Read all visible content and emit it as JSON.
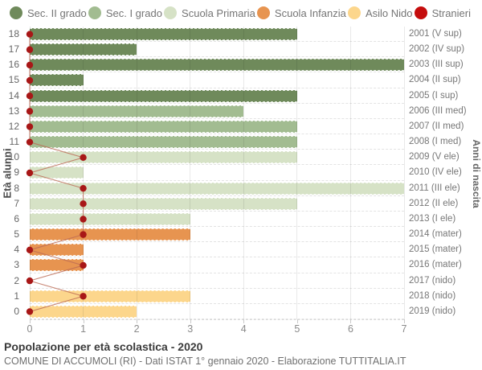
{
  "legend": {
    "items": [
      {
        "key": "sec2",
        "label": "Sec. II grado",
        "color": "#6f8a5b"
      },
      {
        "key": "sec1",
        "label": "Sec. I grado",
        "color": "#a2bc91"
      },
      {
        "key": "primaria",
        "label": "Scuola Primaria",
        "color": "#d6e2c6"
      },
      {
        "key": "infanzia",
        "label": "Scuola Infanzia",
        "color": "#e79450"
      },
      {
        "key": "nido",
        "label": "Asilo Nido",
        "color": "#fcd68c"
      },
      {
        "key": "stranieri",
        "label": "Stranieri",
        "color": "#c50d0d"
      }
    ]
  },
  "chart_data": {
    "type": "bar",
    "orientation": "horizontal",
    "title": "Popolazione per età scolastica - 2020",
    "subtitle": "COMUNE DI ACCUMOLI (RI) - Dati ISTAT 1° gennaio 2020 - Elaborazione TUTTITALIA.IT",
    "left_axis_label": "Età alunni",
    "right_axis_label": "Anni di nascita",
    "xlim": [
      0,
      7
    ],
    "x_ticks": [
      0,
      1,
      2,
      3,
      4,
      5,
      6,
      7
    ],
    "grid": true,
    "series_colors": {
      "sec2": "#6f8a5b",
      "sec1": "#a2bc91",
      "primaria": "#d6e2c6",
      "infanzia": "#e79450",
      "nido": "#fcd68c"
    },
    "stranieri_dot_color": "#a81717",
    "stranieri_line_color": "#bc6a55",
    "rows": [
      {
        "age": 18,
        "birth_label": "2001 (V sup)",
        "group": "sec2",
        "value": 5,
        "stranieri": 0
      },
      {
        "age": 17,
        "birth_label": "2002 (IV sup)",
        "group": "sec2",
        "value": 2,
        "stranieri": 0
      },
      {
        "age": 16,
        "birth_label": "2003 (III sup)",
        "group": "sec2",
        "value": 7,
        "stranieri": 0
      },
      {
        "age": 15,
        "birth_label": "2004 (II sup)",
        "group": "sec2",
        "value": 1,
        "stranieri": 0
      },
      {
        "age": 14,
        "birth_label": "2005 (I sup)",
        "group": "sec2",
        "value": 5,
        "stranieri": 0
      },
      {
        "age": 13,
        "birth_label": "2006 (III med)",
        "group": "sec1",
        "value": 4,
        "stranieri": 0
      },
      {
        "age": 12,
        "birth_label": "2007 (II med)",
        "group": "sec1",
        "value": 5,
        "stranieri": 0
      },
      {
        "age": 11,
        "birth_label": "2008 (I med)",
        "group": "sec1",
        "value": 5,
        "stranieri": 0
      },
      {
        "age": 10,
        "birth_label": "2009 (V ele)",
        "group": "primaria",
        "value": 5,
        "stranieri": 1
      },
      {
        "age": 9,
        "birth_label": "2010 (IV ele)",
        "group": "primaria",
        "value": 1,
        "stranieri": 0
      },
      {
        "age": 8,
        "birth_label": "2011 (III ele)",
        "group": "primaria",
        "value": 7,
        "stranieri": 1
      },
      {
        "age": 7,
        "birth_label": "2012 (II ele)",
        "group": "primaria",
        "value": 5,
        "stranieri": 1
      },
      {
        "age": 6,
        "birth_label": "2013 (I ele)",
        "group": "primaria",
        "value": 3,
        "stranieri": 1
      },
      {
        "age": 5,
        "birth_label": "2014 (mater)",
        "group": "infanzia",
        "value": 3,
        "stranieri": 1
      },
      {
        "age": 4,
        "birth_label": "2015 (mater)",
        "group": "infanzia",
        "value": 1,
        "stranieri": 0
      },
      {
        "age": 3,
        "birth_label": "2016 (mater)",
        "group": "infanzia",
        "value": 1,
        "stranieri": 1
      },
      {
        "age": 2,
        "birth_label": "2017 (nido)",
        "group": "nido",
        "value": 0,
        "stranieri": 0
      },
      {
        "age": 1,
        "birth_label": "2018 (nido)",
        "group": "nido",
        "value": 3,
        "stranieri": 1
      },
      {
        "age": 0,
        "birth_label": "2019 (nido)",
        "group": "nido",
        "value": 2,
        "stranieri": 0
      }
    ]
  }
}
